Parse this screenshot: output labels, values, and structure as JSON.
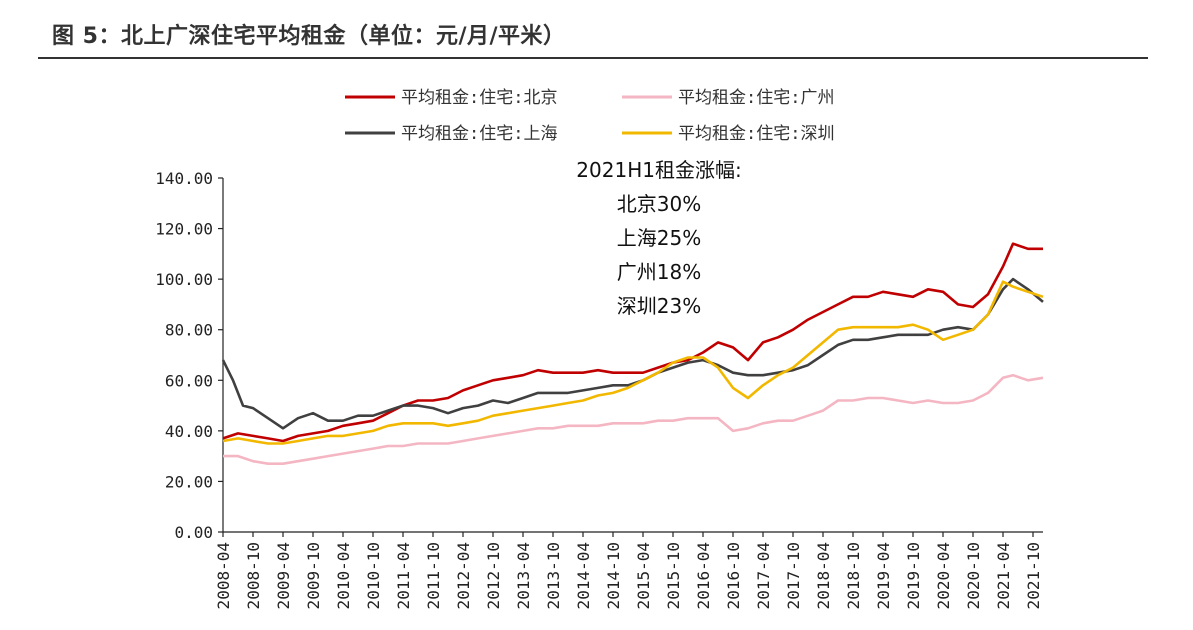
{
  "figure": {
    "title": "图 5：北上广深住宅平均租金（单位：元/月/平米）"
  },
  "chart_data": {
    "type": "line",
    "title": "",
    "xlabel": "",
    "ylabel": "",
    "ylim": [
      0,
      140
    ],
    "y_ticks": [
      "0.00",
      "20.00",
      "40.00",
      "60.00",
      "80.00",
      "100.00",
      "120.00",
      "140.00"
    ],
    "x_start": "2008-04",
    "x_end": "2021-12",
    "x_ticks": [
      "2008-04",
      "2008-10",
      "2009-04",
      "2009-10",
      "2010-04",
      "2010-10",
      "2011-04",
      "2011-10",
      "2012-04",
      "2012-10",
      "2013-04",
      "2013-10",
      "2014-04",
      "2014-10",
      "2015-04",
      "2015-10",
      "2016-04",
      "2016-10",
      "2017-04",
      "2017-10",
      "2018-04",
      "2018-10",
      "2019-04",
      "2019-10",
      "2020-04",
      "2020-10",
      "2021-04",
      "2021-10"
    ],
    "grid": false,
    "legend_position": "top-center",
    "annotations": [
      "2021H1租金涨幅:",
      "北京30%",
      "上海25%",
      "广州18%",
      "深圳23%"
    ],
    "series": [
      {
        "name": "平均租金:住宅:北京",
        "color": "#c00000",
        "points": [
          [
            "2008-04",
            37
          ],
          [
            "2008-07",
            39
          ],
          [
            "2008-10",
            38
          ],
          [
            "2009-01",
            37
          ],
          [
            "2009-04",
            36
          ],
          [
            "2009-07",
            38
          ],
          [
            "2009-10",
            39
          ],
          [
            "2010-01",
            40
          ],
          [
            "2010-04",
            42
          ],
          [
            "2010-07",
            43
          ],
          [
            "2010-10",
            44
          ],
          [
            "2011-01",
            47
          ],
          [
            "2011-04",
            50
          ],
          [
            "2011-07",
            52
          ],
          [
            "2011-10",
            52
          ],
          [
            "2012-01",
            53
          ],
          [
            "2012-04",
            56
          ],
          [
            "2012-07",
            58
          ],
          [
            "2012-10",
            60
          ],
          [
            "2013-01",
            61
          ],
          [
            "2013-04",
            62
          ],
          [
            "2013-07",
            64
          ],
          [
            "2013-10",
            63
          ],
          [
            "2014-01",
            63
          ],
          [
            "2014-04",
            63
          ],
          [
            "2014-07",
            64
          ],
          [
            "2014-10",
            63
          ],
          [
            "2015-01",
            63
          ],
          [
            "2015-04",
            63
          ],
          [
            "2015-07",
            65
          ],
          [
            "2015-10",
            67
          ],
          [
            "2016-01",
            68
          ],
          [
            "2016-04",
            71
          ],
          [
            "2016-07",
            75
          ],
          [
            "2016-10",
            73
          ],
          [
            "2017-01",
            68
          ],
          [
            "2017-04",
            75
          ],
          [
            "2017-07",
            77
          ],
          [
            "2017-10",
            80
          ],
          [
            "2018-01",
            84
          ],
          [
            "2018-04",
            87
          ],
          [
            "2018-07",
            90
          ],
          [
            "2018-10",
            93
          ],
          [
            "2019-01",
            93
          ],
          [
            "2019-04",
            95
          ],
          [
            "2019-07",
            94
          ],
          [
            "2019-10",
            93
          ],
          [
            "2020-01",
            96
          ],
          [
            "2020-04",
            95
          ],
          [
            "2020-07",
            90
          ],
          [
            "2020-10",
            89
          ],
          [
            "2021-01",
            94
          ],
          [
            "2021-04",
            105
          ],
          [
            "2021-06",
            114
          ],
          [
            "2021-09",
            112
          ],
          [
            "2021-12",
            112
          ]
        ]
      },
      {
        "name": "平均租金:住宅:广州",
        "color": "#f4b6c2",
        "points": [
          [
            "2008-04",
            30
          ],
          [
            "2008-07",
            30
          ],
          [
            "2008-10",
            28
          ],
          [
            "2009-01",
            27
          ],
          [
            "2009-04",
            27
          ],
          [
            "2009-07",
            28
          ],
          [
            "2009-10",
            29
          ],
          [
            "2010-01",
            30
          ],
          [
            "2010-04",
            31
          ],
          [
            "2010-07",
            32
          ],
          [
            "2010-10",
            33
          ],
          [
            "2011-01",
            34
          ],
          [
            "2011-04",
            34
          ],
          [
            "2011-07",
            35
          ],
          [
            "2011-10",
            35
          ],
          [
            "2012-01",
            35
          ],
          [
            "2012-04",
            36
          ],
          [
            "2012-07",
            37
          ],
          [
            "2012-10",
            38
          ],
          [
            "2013-01",
            39
          ],
          [
            "2013-04",
            40
          ],
          [
            "2013-07",
            41
          ],
          [
            "2013-10",
            41
          ],
          [
            "2014-01",
            42
          ],
          [
            "2014-04",
            42
          ],
          [
            "2014-07",
            42
          ],
          [
            "2014-10",
            43
          ],
          [
            "2015-01",
            43
          ],
          [
            "2015-04",
            43
          ],
          [
            "2015-07",
            44
          ],
          [
            "2015-10",
            44
          ],
          [
            "2016-01",
            45
          ],
          [
            "2016-04",
            45
          ],
          [
            "2016-07",
            45
          ],
          [
            "2016-10",
            40
          ],
          [
            "2017-01",
            41
          ],
          [
            "2017-04",
            43
          ],
          [
            "2017-07",
            44
          ],
          [
            "2017-10",
            44
          ],
          [
            "2018-01",
            46
          ],
          [
            "2018-04",
            48
          ],
          [
            "2018-07",
            52
          ],
          [
            "2018-10",
            52
          ],
          [
            "2019-01",
            53
          ],
          [
            "2019-04",
            53
          ],
          [
            "2019-07",
            52
          ],
          [
            "2019-10",
            51
          ],
          [
            "2020-01",
            52
          ],
          [
            "2020-04",
            51
          ],
          [
            "2020-07",
            51
          ],
          [
            "2020-10",
            52
          ],
          [
            "2021-01",
            55
          ],
          [
            "2021-04",
            61
          ],
          [
            "2021-06",
            62
          ],
          [
            "2021-09",
            60
          ],
          [
            "2021-12",
            61
          ]
        ]
      },
      {
        "name": "平均租金:住宅:上海",
        "color": "#404040",
        "points": [
          [
            "2008-04",
            68
          ],
          [
            "2008-06",
            60
          ],
          [
            "2008-08",
            50
          ],
          [
            "2008-10",
            49
          ],
          [
            "2009-01",
            45
          ],
          [
            "2009-04",
            41
          ],
          [
            "2009-07",
            45
          ],
          [
            "2009-10",
            47
          ],
          [
            "2010-01",
            44
          ],
          [
            "2010-04",
            44
          ],
          [
            "2010-07",
            46
          ],
          [
            "2010-10",
            46
          ],
          [
            "2011-01",
            48
          ],
          [
            "2011-04",
            50
          ],
          [
            "2011-07",
            50
          ],
          [
            "2011-10",
            49
          ],
          [
            "2012-01",
            47
          ],
          [
            "2012-04",
            49
          ],
          [
            "2012-07",
            50
          ],
          [
            "2012-10",
            52
          ],
          [
            "2013-01",
            51
          ],
          [
            "2013-04",
            53
          ],
          [
            "2013-07",
            55
          ],
          [
            "2013-10",
            55
          ],
          [
            "2014-01",
            55
          ],
          [
            "2014-04",
            56
          ],
          [
            "2014-07",
            57
          ],
          [
            "2014-10",
            58
          ],
          [
            "2015-01",
            58
          ],
          [
            "2015-04",
            60
          ],
          [
            "2015-07",
            63
          ],
          [
            "2015-10",
            65
          ],
          [
            "2016-01",
            67
          ],
          [
            "2016-04",
            68
          ],
          [
            "2016-07",
            66
          ],
          [
            "2016-10",
            63
          ],
          [
            "2017-01",
            62
          ],
          [
            "2017-04",
            62
          ],
          [
            "2017-07",
            63
          ],
          [
            "2017-10",
            64
          ],
          [
            "2018-01",
            66
          ],
          [
            "2018-04",
            70
          ],
          [
            "2018-07",
            74
          ],
          [
            "2018-10",
            76
          ],
          [
            "2019-01",
            76
          ],
          [
            "2019-04",
            77
          ],
          [
            "2019-07",
            78
          ],
          [
            "2019-10",
            78
          ],
          [
            "2020-01",
            78
          ],
          [
            "2020-04",
            80
          ],
          [
            "2020-07",
            81
          ],
          [
            "2020-10",
            80
          ],
          [
            "2021-01",
            86
          ],
          [
            "2021-04",
            96
          ],
          [
            "2021-06",
            100
          ],
          [
            "2021-09",
            96
          ],
          [
            "2021-12",
            91
          ]
        ]
      },
      {
        "name": "平均租金:住宅:深圳",
        "color": "#f2b800",
        "points": [
          [
            "2008-04",
            36
          ],
          [
            "2008-07",
            37
          ],
          [
            "2008-10",
            36
          ],
          [
            "2009-01",
            35
          ],
          [
            "2009-04",
            35
          ],
          [
            "2009-07",
            36
          ],
          [
            "2009-10",
            37
          ],
          [
            "2010-01",
            38
          ],
          [
            "2010-04",
            38
          ],
          [
            "2010-07",
            39
          ],
          [
            "2010-10",
            40
          ],
          [
            "2011-01",
            42
          ],
          [
            "2011-04",
            43
          ],
          [
            "2011-07",
            43
          ],
          [
            "2011-10",
            43
          ],
          [
            "2012-01",
            42
          ],
          [
            "2012-04",
            43
          ],
          [
            "2012-07",
            44
          ],
          [
            "2012-10",
            46
          ],
          [
            "2013-01",
            47
          ],
          [
            "2013-04",
            48
          ],
          [
            "2013-07",
            49
          ],
          [
            "2013-10",
            50
          ],
          [
            "2014-01",
            51
          ],
          [
            "2014-04",
            52
          ],
          [
            "2014-07",
            54
          ],
          [
            "2014-10",
            55
          ],
          [
            "2015-01",
            57
          ],
          [
            "2015-04",
            60
          ],
          [
            "2015-07",
            63
          ],
          [
            "2015-10",
            67
          ],
          [
            "2016-01",
            69
          ],
          [
            "2016-04",
            69
          ],
          [
            "2016-07",
            65
          ],
          [
            "2016-10",
            57
          ],
          [
            "2017-01",
            53
          ],
          [
            "2017-04",
            58
          ],
          [
            "2017-07",
            62
          ],
          [
            "2017-10",
            65
          ],
          [
            "2018-01",
            70
          ],
          [
            "2018-04",
            75
          ],
          [
            "2018-07",
            80
          ],
          [
            "2018-10",
            81
          ],
          [
            "2019-01",
            81
          ],
          [
            "2019-04",
            81
          ],
          [
            "2019-07",
            81
          ],
          [
            "2019-10",
            82
          ],
          [
            "2020-01",
            80
          ],
          [
            "2020-04",
            76
          ],
          [
            "2020-07",
            78
          ],
          [
            "2020-10",
            80
          ],
          [
            "2021-01",
            86
          ],
          [
            "2021-04",
            99
          ],
          [
            "2021-06",
            97
          ],
          [
            "2021-09",
            95
          ],
          [
            "2021-12",
            93
          ]
        ]
      }
    ]
  }
}
